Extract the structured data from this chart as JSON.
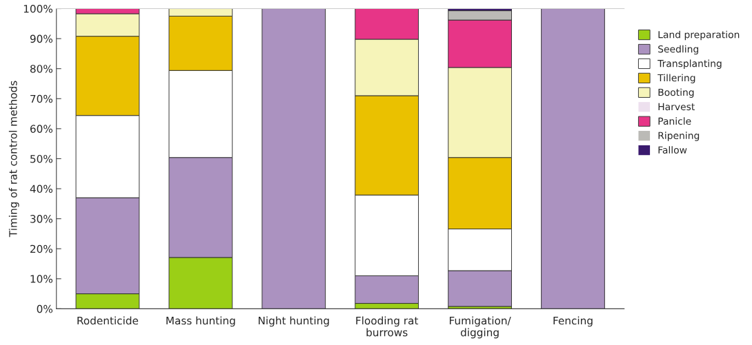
{
  "chart_data": {
    "type": "bar",
    "stacked": true,
    "ylabel": "Timing of rat control methods",
    "categories": [
      "Rodenticide",
      "Mass hunting",
      "Night hunting",
      "Flooding rat\nburrows",
      "Fumigation/\ndigging",
      "Fencing"
    ],
    "series": [
      {
        "name": "Land preparation",
        "color": "#9bcf16",
        "values": [
          5,
          17.1,
          0,
          1.8,
          0.8,
          0
        ]
      },
      {
        "name": "Seedling",
        "color": "#ab92c0",
        "values": [
          32,
          33.3,
          100,
          9.2,
          11.9,
          100
        ]
      },
      {
        "name": "Transplanting",
        "color": "#ffffff",
        "values": [
          27.4,
          29,
          0,
          26.9,
          13.9,
          0
        ]
      },
      {
        "name": "Tillering",
        "color": "#eac100",
        "values": [
          26.4,
          18.1,
          0,
          33.1,
          23.8,
          0
        ]
      },
      {
        "name": "Booting",
        "color": "#f6f4b9",
        "values": [
          7.5,
          2.5,
          0,
          18.8,
          30.0,
          0
        ]
      },
      {
        "name": "Harvest",
        "color": "#ede0ee",
        "values": [
          0,
          0,
          0,
          0,
          0,
          0
        ]
      },
      {
        "name": "Panicle",
        "color": "#e73587",
        "values": [
          1.7,
          0,
          0,
          10.2,
          15.8,
          0
        ]
      },
      {
        "name": "Ripening",
        "color": "#bbbab6",
        "values": [
          0,
          0,
          0,
          0,
          3.1,
          0
        ]
      },
      {
        "name": "Fallow",
        "color": "#3a1a6e",
        "values": [
          0,
          0,
          0,
          0,
          0.7,
          0
        ]
      }
    ],
    "ylim": [
      0,
      100
    ],
    "yticks": [
      {
        "value": 0,
        "label": "0%"
      },
      {
        "value": 10,
        "label": "10%"
      },
      {
        "value": 20,
        "label": "20%"
      },
      {
        "value": 30,
        "label": "30%"
      },
      {
        "value": 40,
        "label": "40%"
      },
      {
        "value": 50,
        "label": "50%"
      },
      {
        "value": 60,
        "label": "60%"
      },
      {
        "value": 70,
        "label": "70%"
      },
      {
        "value": 80,
        "label": "80%"
      },
      {
        "value": 90,
        "label": "90%"
      },
      {
        "value": 100,
        "label": "100%"
      }
    ],
    "grid": false,
    "legend": "right"
  }
}
